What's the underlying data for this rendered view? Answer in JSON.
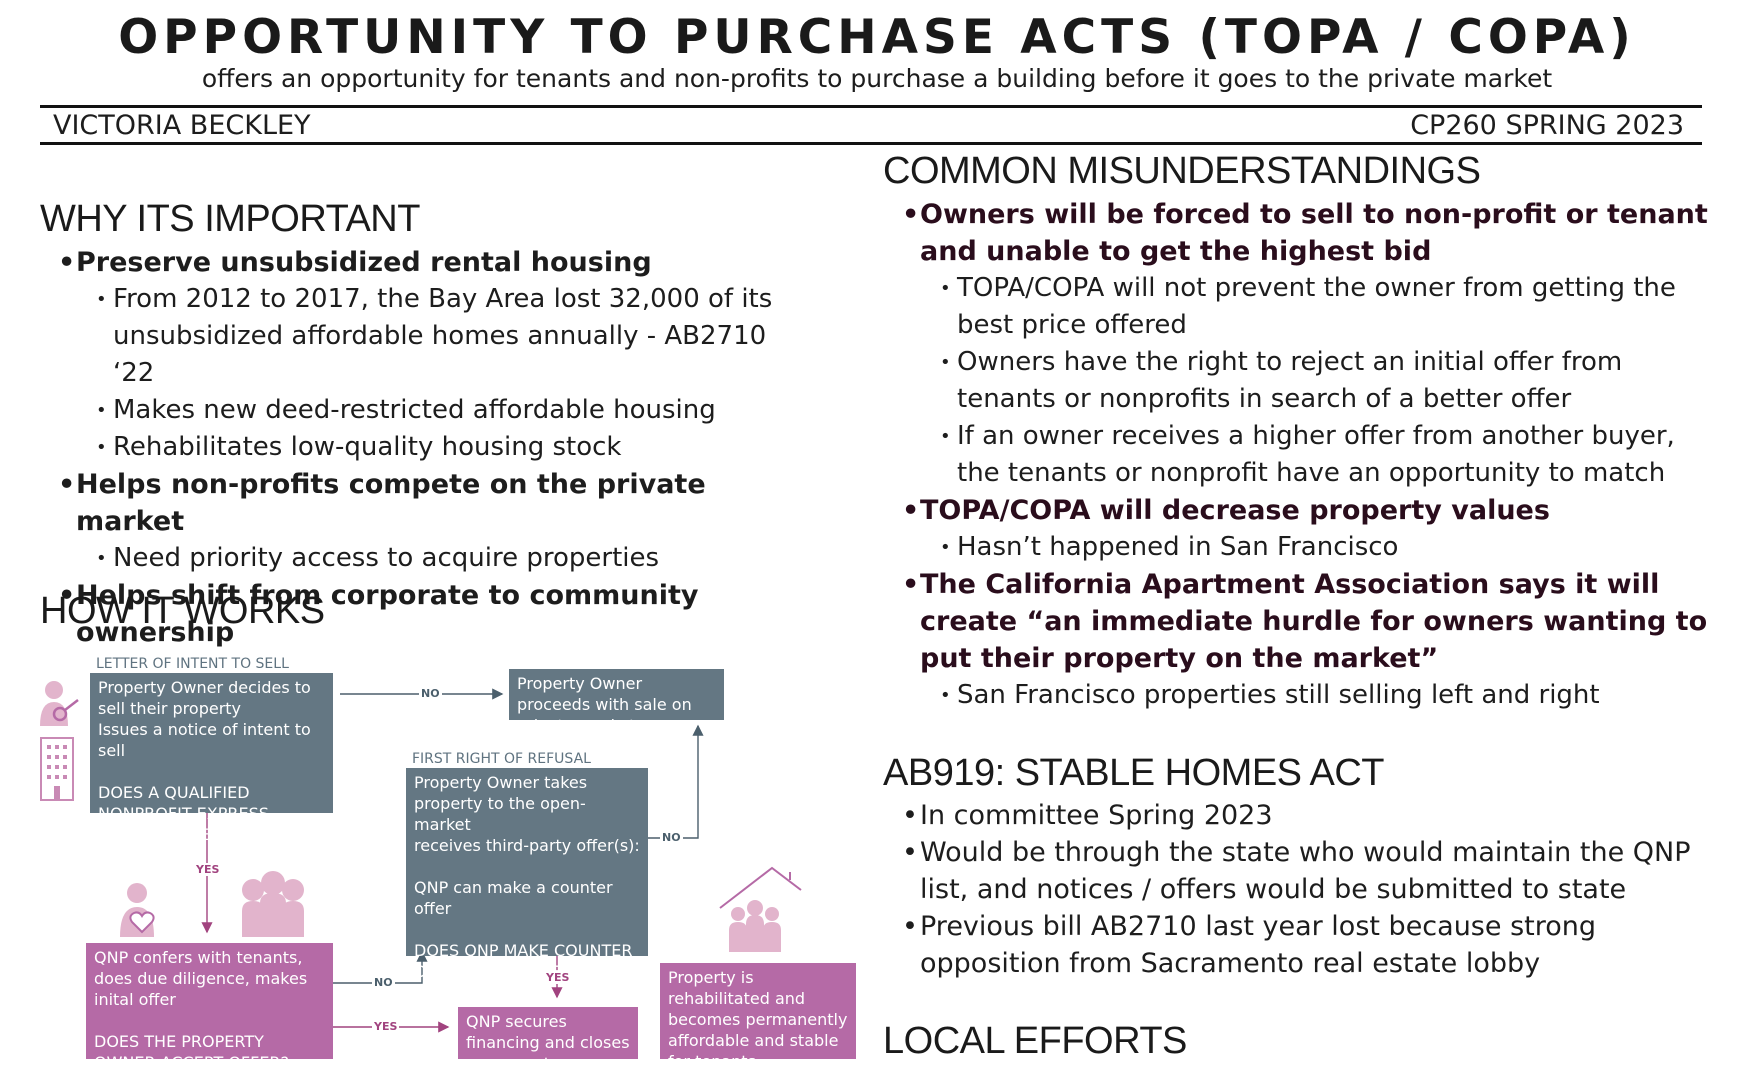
{
  "header": {
    "title": "OPPORTUNITY TO PURCHASE ACTS (TOPA / COPA)",
    "subtitle": "offers an opportunity for tenants and non-profits to purchase a building before it goes to the private market",
    "author": "VICTORIA BECKLEY",
    "course": "CP260 SPRING 2023"
  },
  "why": {
    "heading": "WHY ITS IMPORTANT",
    "items": [
      "Preserve unsubsidized rental housing",
      "From 2012 to 2017, the Bay Area lost 32,000 of its unsubsidized affordable homes annually - AB2710 ‘22",
      "Makes new deed-restricted affordable housing",
      "Rehabilitates low-quality housing stock",
      "Helps non-profits compete on the private market",
      "Need priority access to acquire properties",
      "Helps shift from corporate to community ownership"
    ]
  },
  "how": {
    "heading": "HOW IT WORKS",
    "caption_letter": "LETTER OF INTENT TO SELL",
    "box1": [
      "Property Owner decides to sell their property",
      "Issues a notice of intent to sell",
      "DOES A QUALIFIED NONPROFIT EXPRESS INTEREST IN BUYING?"
    ],
    "box_sale": "Property Owner proceeds with sale on private market",
    "caption_refusal": "FIRST RIGHT OF REFUSAL",
    "box_refusal": [
      "Property Owner takes property to the open-market",
      "receives third-party offer(s):",
      "QNP can make a counter offer",
      "DOES QNP MAKE COUNTER OFFER AND OWNER ACCEPTS?"
    ],
    "box_qnp": [
      "QNP confers with tenants, does due diligence, makes inital offer",
      "DOES THE PROPERTY OWNER ACCEPT OFFER?"
    ],
    "box_secure": "QNP secures financing and closes on property",
    "box_rehab": "Property is rehabilitated and becomes permanently affordable and stable for tenants",
    "yes_label": "YES",
    "no_label": "NO"
  },
  "misunderstandings": {
    "heading": "COMMON MISUNDERSTANDINGS",
    "items": [
      "Owners will be forced to sell to non-profit or tenant and unable to get the highest bid",
      "TOPA/COPA will not prevent the owner from getting the best price offered",
      "Owners have the right to reject an initial offer from tenants or nonprofits in search of a better offer",
      "If an owner receives a higher offer from another buyer, the tenants or nonprofit have an opportunity to match",
      "TOPA/COPA will decrease property values",
      "Hasn’t happened in San Francisco",
      "The California Apartment Association says it will create “an immediate hurdle for owners wanting to put their property on the market”",
      "San Francisco properties still selling left and right"
    ]
  },
  "ab919": {
    "heading": "AB919: STABLE HOMES ACT",
    "items": [
      "In committee Spring 2023",
      "Would be through the state who would maintain the QNP list, and notices / offers would be submitted to state",
      "Previous bill AB2710 last year lost because strong opposition from Sacramento real estate lobby"
    ]
  },
  "local": {
    "heading": "LOCAL EFFORTS"
  },
  "colors": {
    "slate": "#647783",
    "magenta": "#b56aa6",
    "icon_pink": "#e2b4cc",
    "arrow_blue": "#4b5f6c",
    "arrow_magenta": "#a1437f"
  },
  "icons": [
    "person-key-icon",
    "building-icon",
    "person-heart-icon",
    "group-icon",
    "house-group-icon"
  ]
}
